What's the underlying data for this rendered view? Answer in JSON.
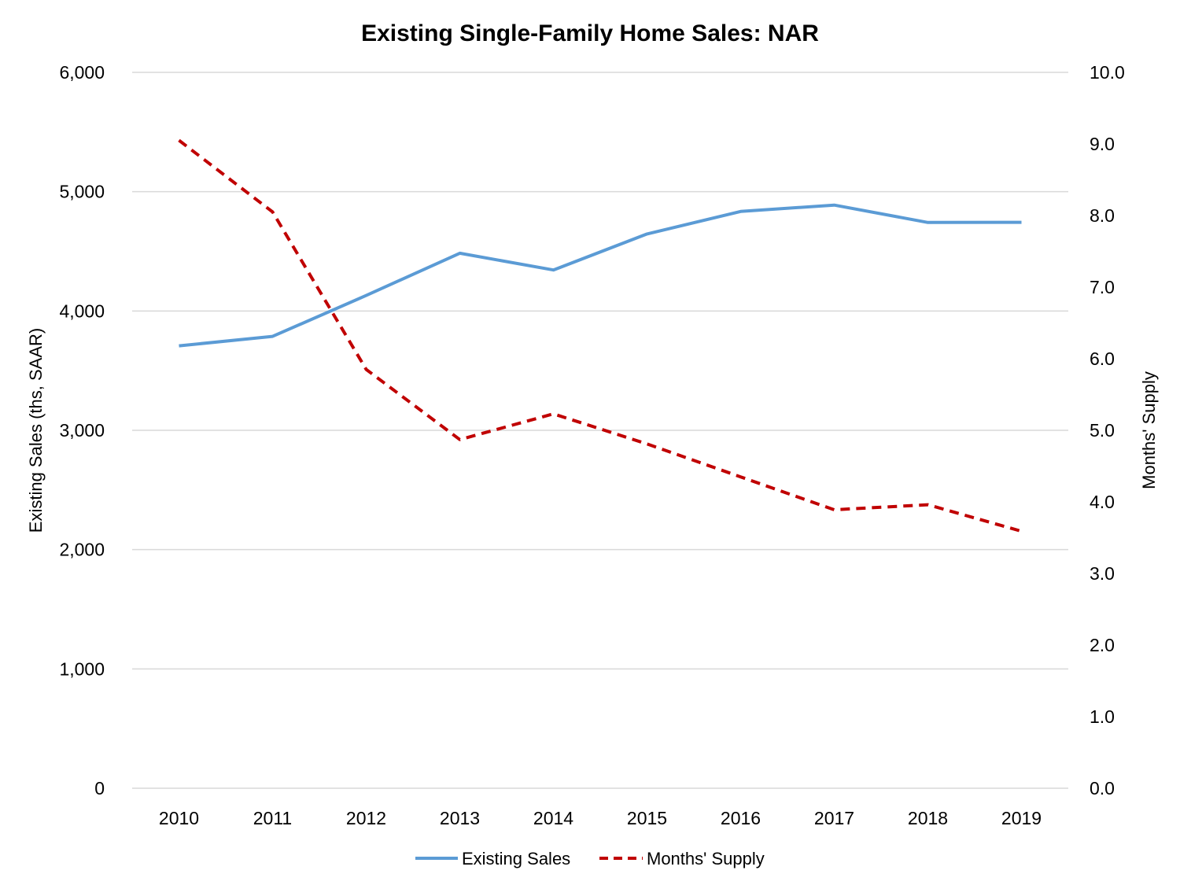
{
  "chart_data": {
    "type": "line",
    "title": "Existing Single-Family Home Sales: NAR",
    "categories": [
      "2010",
      "2011",
      "2012",
      "2013",
      "2014",
      "2015",
      "2016",
      "2017",
      "2018",
      "2019"
    ],
    "y_left": {
      "label": "Existing Sales (ths, SAAR)",
      "min": 0,
      "max": 6000,
      "step": 1000,
      "tick_labels": [
        "0",
        "1,000",
        "2,000",
        "3,000",
        "4,000",
        "5,000",
        "6,000"
      ]
    },
    "y_right": {
      "label": "Months' Supply",
      "min": 0,
      "max": 10,
      "step": 1,
      "tick_labels": [
        "0.0",
        "1.0",
        "2.0",
        "3.0",
        "4.0",
        "5.0",
        "6.0",
        "7.0",
        "8.0",
        "9.0",
        "10.0"
      ]
    },
    "grid": true,
    "legend_position": "bottom",
    "series": [
      {
        "name": "Existing Sales",
        "axis": "left",
        "style": "solid",
        "color": "#5b9bd5",
        "values": [
          3708,
          3787,
          4130,
          4484,
          4344,
          4646,
          4834,
          4888,
          4742,
          4743
        ]
      },
      {
        "name": "Months' Supply",
        "axis": "right",
        "style": "dashed",
        "color": "#c00000",
        "values": [
          9.05,
          8.05,
          5.85,
          4.87,
          5.23,
          4.81,
          4.35,
          3.89,
          3.96,
          3.59
        ]
      }
    ]
  }
}
